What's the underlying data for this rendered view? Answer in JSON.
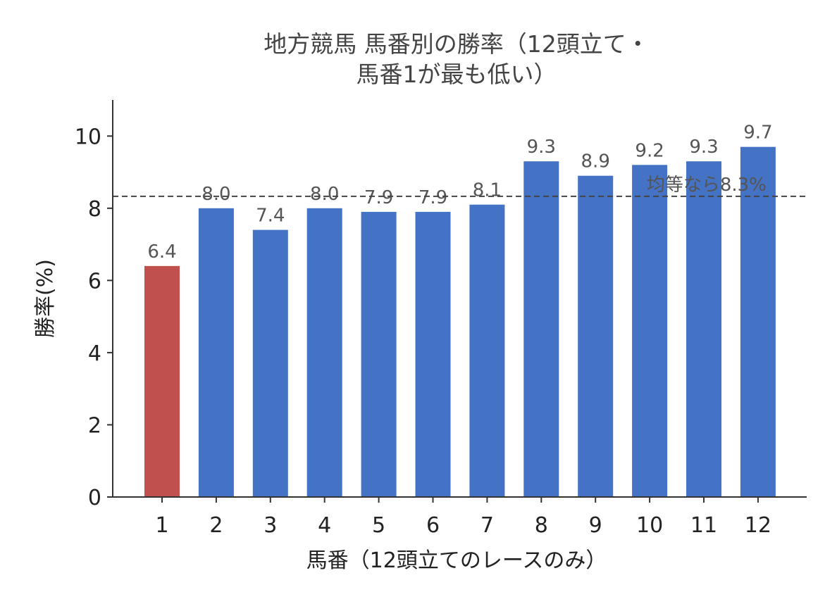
{
  "chart_data": {
    "type": "bar",
    "title_lines": [
      "地方競馬 馬番別の勝率（12頭立て・",
      "馬番1が最も低い）"
    ],
    "xlabel": "馬番（12頭立てのレースのみ）",
    "ylabel": "勝率(%)",
    "categories": [
      "1",
      "2",
      "3",
      "4",
      "5",
      "6",
      "7",
      "8",
      "9",
      "10",
      "11",
      "12"
    ],
    "values": [
      6.4,
      8.0,
      7.4,
      8.0,
      7.9,
      7.9,
      8.1,
      9.3,
      8.9,
      9.2,
      9.3,
      9.7
    ],
    "value_labels": [
      "6.4",
      "8.0",
      "7.4",
      "8.0",
      "7.9",
      "7.9",
      "8.1",
      "9.3",
      "8.9",
      "9.2",
      "9.3",
      "9.7"
    ],
    "highlight_index": 0,
    "ylim": [
      0,
      11
    ],
    "yticks": [
      0,
      2,
      4,
      6,
      8,
      10
    ],
    "reference_line": {
      "value": 8.33,
      "label": "均等なら8.3%",
      "style": "dashed"
    },
    "grid": false,
    "legend": "none",
    "colors": {
      "bar": "#4472c4",
      "highlight": "#c0504d",
      "axis": "#333333",
      "reference": "#444444"
    }
  }
}
